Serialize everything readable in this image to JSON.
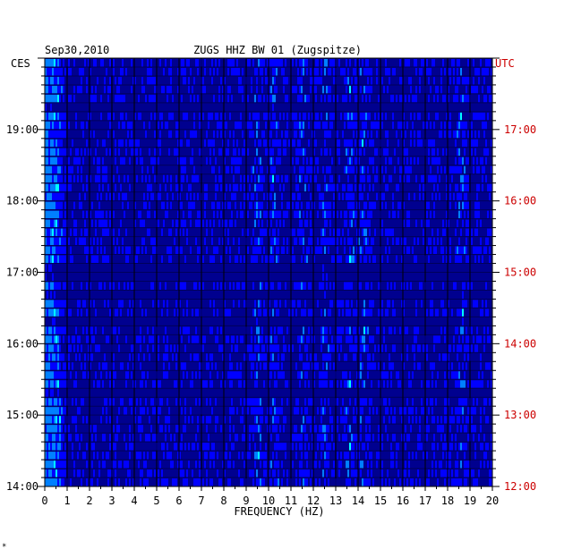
{
  "header": {
    "date": "Sep30,2010",
    "station": "ZUGS HHZ BW 01 (Zugspitze)",
    "left_zone": "CES",
    "right_zone": "UTC"
  },
  "footer": {
    "mark": "*"
  },
  "colors": {
    "background_field": "#00008f",
    "right_axis_labels": "#cc0000",
    "text": "#000000"
  },
  "chart_data": {
    "type": "heatmap",
    "xlabel": "FREQUENCY (HZ)",
    "xlim": [
      0,
      20
    ],
    "x_ticks": [
      "0",
      "1",
      "2",
      "3",
      "4",
      "5",
      "6",
      "7",
      "8",
      "9",
      "10",
      "11",
      "12",
      "13",
      "14",
      "15",
      "16",
      "17",
      "18",
      "19",
      "20"
    ],
    "y_left_ticks": [
      "19:00",
      "18:00",
      "17:00",
      "16:00",
      "15:00",
      "14:00"
    ],
    "y_right_ticks": [
      "17:00",
      "16:00",
      "15:00",
      "14:00",
      "13:00",
      "12:00"
    ],
    "time_range_ces": [
      "14:00",
      "19:50"
    ],
    "rows": 48,
    "colorscale": [
      "#00008f",
      "#0000ff",
      "#0080ff",
      "#00ffff",
      "#80ff80",
      "#ffff00",
      "#ff8000",
      "#ff0000"
    ],
    "energy_bands_hz": [
      0.5,
      9.5,
      10.2,
      11.5,
      12.5,
      13.6,
      14.2,
      18.6
    ]
  }
}
